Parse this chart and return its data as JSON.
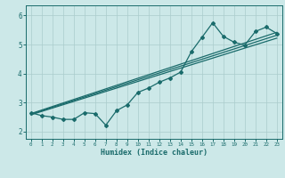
{
  "title": "",
  "xlabel": "Humidex (Indice chaleur)",
  "bg_color": "#cce8e8",
  "grid_color": "#aacccc",
  "line_color": "#1a6b6b",
  "xlim": [
    -0.5,
    23.5
  ],
  "ylim": [
    1.75,
    6.35
  ],
  "xticks": [
    0,
    1,
    2,
    3,
    4,
    5,
    6,
    7,
    8,
    9,
    10,
    11,
    12,
    13,
    14,
    15,
    16,
    17,
    18,
    19,
    20,
    21,
    22,
    23
  ],
  "yticks": [
    2,
    3,
    4,
    5,
    6
  ],
  "series1_x": [
    0,
    1,
    2,
    3,
    4,
    5,
    6,
    7,
    8,
    9,
    10,
    11,
    12,
    13,
    14,
    15,
    16,
    17,
    18,
    19,
    20,
    21,
    22,
    23
  ],
  "series1_y": [
    2.65,
    2.55,
    2.5,
    2.42,
    2.42,
    2.65,
    2.62,
    2.22,
    2.72,
    2.92,
    3.35,
    3.5,
    3.7,
    3.85,
    4.05,
    4.75,
    5.25,
    5.75,
    5.28,
    5.08,
    4.98,
    5.45,
    5.6,
    5.38
  ],
  "series2_x": [
    0,
    23
  ],
  "series2_y": [
    2.62,
    5.42
  ],
  "series3_x": [
    0,
    23
  ],
  "series3_y": [
    2.58,
    5.22
  ],
  "series4_x": [
    0,
    23
  ],
  "series4_y": [
    2.6,
    5.32
  ]
}
